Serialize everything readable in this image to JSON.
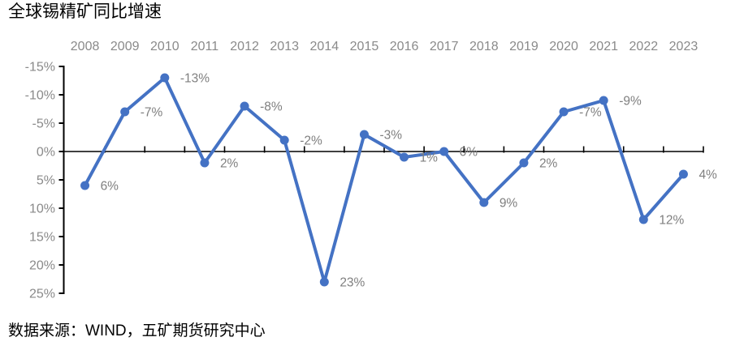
{
  "page": {
    "title": "全球锡精矿同比增速",
    "source": "数据来源：WIND，五矿期货研究中心"
  },
  "chart_data": {
    "type": "line",
    "title": "全球锡精矿同比增速",
    "categories": [
      "2008",
      "2009",
      "2010",
      "2011",
      "2012",
      "2013",
      "2014",
      "2015",
      "2016",
      "2017",
      "2018",
      "2019",
      "2020",
      "2021",
      "2022",
      "2023"
    ],
    "series": [
      {
        "name": "全球锡精矿同比增速",
        "values": [
          6,
          -7,
          -13,
          2,
          -8,
          -2,
          23,
          -3,
          1,
          0,
          9,
          2,
          -7,
          -9,
          12,
          4
        ],
        "point_labels": [
          "6%",
          "-7%",
          "-13%",
          "2%",
          "-8%",
          "-2%",
          "23%",
          "-3%",
          "1%",
          "0%",
          "9%",
          "2%",
          "-7%",
          "-9%",
          "12%",
          "4%"
        ],
        "color": "#4472C4"
      }
    ],
    "x_axis": {
      "label_position": "top",
      "tick_label_color": "#8a8a8a"
    },
    "y_axis": {
      "tick_values": [
        -15,
        -10,
        -5,
        0,
        5,
        10,
        15,
        20,
        25
      ],
      "tick_labels": [
        "-15%",
        "-10%",
        "-5%",
        "0%",
        "5%",
        "10%",
        "15%",
        "20%",
        "25%"
      ],
      "min": -15,
      "max": 25,
      "reversed": true,
      "tick_label_color": "#8a8a8a"
    },
    "zero_line": true,
    "grid": false,
    "legend_position": "none",
    "data_label_color": "#7f7f7f",
    "axis_line_color": "#000000",
    "background": "#ffffff"
  }
}
